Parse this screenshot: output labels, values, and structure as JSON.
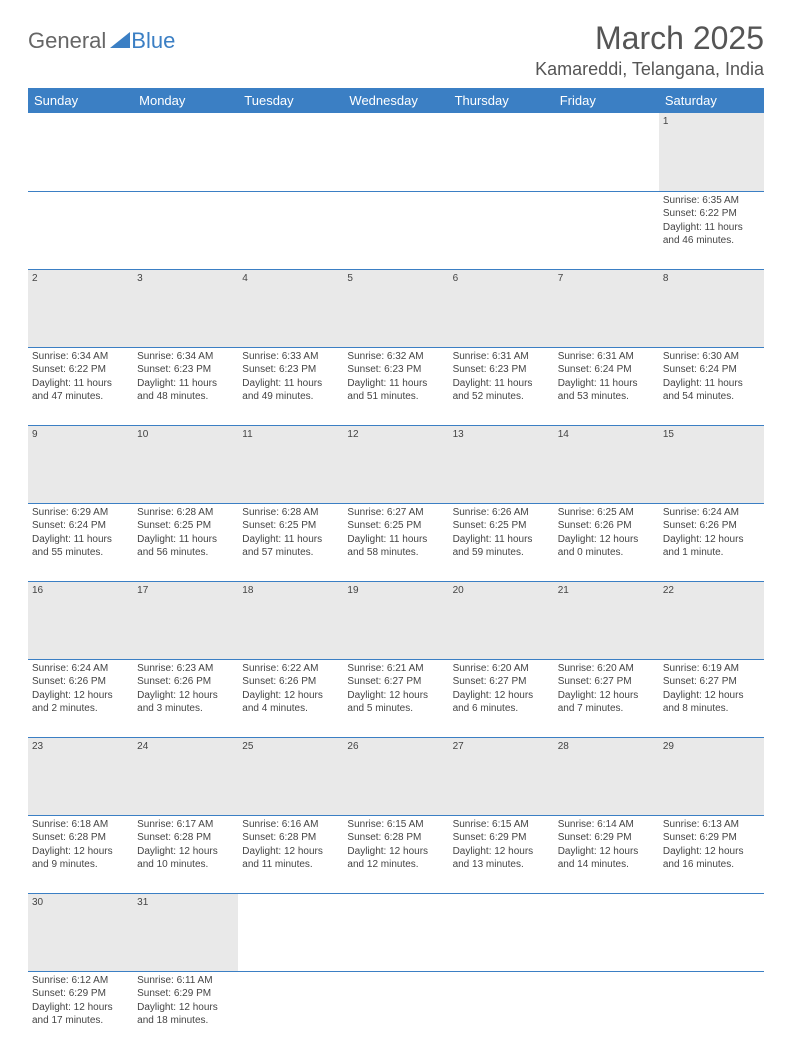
{
  "logo": {
    "text_general": "General",
    "text_blue": "Blue"
  },
  "title": "March 2025",
  "location": "Kamareddi, Telangana, India",
  "day_headers": [
    "Sunday",
    "Monday",
    "Tuesday",
    "Wednesday",
    "Thursday",
    "Friday",
    "Saturday"
  ],
  "colors": {
    "header_bg": "#3b7fc4",
    "header_text": "#ffffff",
    "daynum_bg": "#e9e9e9",
    "rule": "#3b7fc4"
  },
  "weeks": [
    [
      null,
      null,
      null,
      null,
      null,
      null,
      {
        "n": "1",
        "sr": "6:35 AM",
        "ss": "6:22 PM",
        "dl": "11 hours and 46 minutes."
      }
    ],
    [
      {
        "n": "2",
        "sr": "6:34 AM",
        "ss": "6:22 PM",
        "dl": "11 hours and 47 minutes."
      },
      {
        "n": "3",
        "sr": "6:34 AM",
        "ss": "6:23 PM",
        "dl": "11 hours and 48 minutes."
      },
      {
        "n": "4",
        "sr": "6:33 AM",
        "ss": "6:23 PM",
        "dl": "11 hours and 49 minutes."
      },
      {
        "n": "5",
        "sr": "6:32 AM",
        "ss": "6:23 PM",
        "dl": "11 hours and 51 minutes."
      },
      {
        "n": "6",
        "sr": "6:31 AM",
        "ss": "6:23 PM",
        "dl": "11 hours and 52 minutes."
      },
      {
        "n": "7",
        "sr": "6:31 AM",
        "ss": "6:24 PM",
        "dl": "11 hours and 53 minutes."
      },
      {
        "n": "8",
        "sr": "6:30 AM",
        "ss": "6:24 PM",
        "dl": "11 hours and 54 minutes."
      }
    ],
    [
      {
        "n": "9",
        "sr": "6:29 AM",
        "ss": "6:24 PM",
        "dl": "11 hours and 55 minutes."
      },
      {
        "n": "10",
        "sr": "6:28 AM",
        "ss": "6:25 PM",
        "dl": "11 hours and 56 minutes."
      },
      {
        "n": "11",
        "sr": "6:28 AM",
        "ss": "6:25 PM",
        "dl": "11 hours and 57 minutes."
      },
      {
        "n": "12",
        "sr": "6:27 AM",
        "ss": "6:25 PM",
        "dl": "11 hours and 58 minutes."
      },
      {
        "n": "13",
        "sr": "6:26 AM",
        "ss": "6:25 PM",
        "dl": "11 hours and 59 minutes."
      },
      {
        "n": "14",
        "sr": "6:25 AM",
        "ss": "6:26 PM",
        "dl": "12 hours and 0 minutes."
      },
      {
        "n": "15",
        "sr": "6:24 AM",
        "ss": "6:26 PM",
        "dl": "12 hours and 1 minute."
      }
    ],
    [
      {
        "n": "16",
        "sr": "6:24 AM",
        "ss": "6:26 PM",
        "dl": "12 hours and 2 minutes."
      },
      {
        "n": "17",
        "sr": "6:23 AM",
        "ss": "6:26 PM",
        "dl": "12 hours and 3 minutes."
      },
      {
        "n": "18",
        "sr": "6:22 AM",
        "ss": "6:26 PM",
        "dl": "12 hours and 4 minutes."
      },
      {
        "n": "19",
        "sr": "6:21 AM",
        "ss": "6:27 PM",
        "dl": "12 hours and 5 minutes."
      },
      {
        "n": "20",
        "sr": "6:20 AM",
        "ss": "6:27 PM",
        "dl": "12 hours and 6 minutes."
      },
      {
        "n": "21",
        "sr": "6:20 AM",
        "ss": "6:27 PM",
        "dl": "12 hours and 7 minutes."
      },
      {
        "n": "22",
        "sr": "6:19 AM",
        "ss": "6:27 PM",
        "dl": "12 hours and 8 minutes."
      }
    ],
    [
      {
        "n": "23",
        "sr": "6:18 AM",
        "ss": "6:28 PM",
        "dl": "12 hours and 9 minutes."
      },
      {
        "n": "24",
        "sr": "6:17 AM",
        "ss": "6:28 PM",
        "dl": "12 hours and 10 minutes."
      },
      {
        "n": "25",
        "sr": "6:16 AM",
        "ss": "6:28 PM",
        "dl": "12 hours and 11 minutes."
      },
      {
        "n": "26",
        "sr": "6:15 AM",
        "ss": "6:28 PM",
        "dl": "12 hours and 12 minutes."
      },
      {
        "n": "27",
        "sr": "6:15 AM",
        "ss": "6:29 PM",
        "dl": "12 hours and 13 minutes."
      },
      {
        "n": "28",
        "sr": "6:14 AM",
        "ss": "6:29 PM",
        "dl": "12 hours and 14 minutes."
      },
      {
        "n": "29",
        "sr": "6:13 AM",
        "ss": "6:29 PM",
        "dl": "12 hours and 16 minutes."
      }
    ],
    [
      {
        "n": "30",
        "sr": "6:12 AM",
        "ss": "6:29 PM",
        "dl": "12 hours and 17 minutes."
      },
      {
        "n": "31",
        "sr": "6:11 AM",
        "ss": "6:29 PM",
        "dl": "12 hours and 18 minutes."
      },
      null,
      null,
      null,
      null,
      null
    ]
  ],
  "labels": {
    "sunrise": "Sunrise:",
    "sunset": "Sunset:",
    "daylight": "Daylight:"
  }
}
